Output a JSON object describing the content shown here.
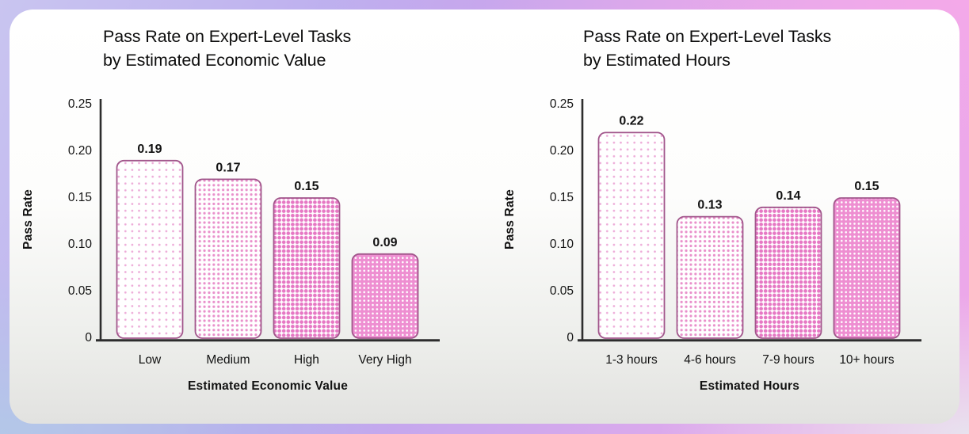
{
  "style": {
    "bar_border_color": "#a1568b",
    "dot_color_sparse": "#edaad8",
    "dot_color_medium": "#e990cb",
    "dot_color_dense": "#e678c4",
    "inverted_bar_bg": "#ee8ed1",
    "inverted_dot_color": "#ffffff",
    "axis_color": "#2d2d2d",
    "text_color": "#121212",
    "frame_purple": "#c9c5f0",
    "frame_pink": "#f3a8e8",
    "frame_blue": "#b3c7e8",
    "card_bg_top": "#ffffff",
    "card_bg_bottom": "#e2e2e0"
  },
  "chart_data": [
    {
      "type": "bar",
      "title": "Pass Rate on Expert-Level Tasks by Estimated Economic Value",
      "title_lines": [
        "Pass Rate on Expert-Level Tasks",
        "by Estimated Economic Value"
      ],
      "xlabel": "Estimated Economic Value",
      "ylabel": "Pass Rate",
      "categories": [
        "Low",
        "Medium",
        "High",
        "Very High"
      ],
      "values": [
        0.19,
        0.17,
        0.15,
        0.09
      ],
      "value_labels": [
        "0.19",
        "0.17",
        "0.15",
        "0.09"
      ],
      "ylim": [
        0,
        0.25
      ],
      "yticks": [
        0,
        0.05,
        0.1,
        0.15,
        0.2,
        0.25
      ],
      "ytick_labels": [
        "0",
        "0.05",
        "0.10",
        "0.15",
        "0.20",
        "0.25"
      ],
      "grid": false
    },
    {
      "type": "bar",
      "title": "Pass Rate on Expert-Level Tasks by Estimated Hours",
      "title_lines": [
        "Pass Rate on Expert-Level Tasks",
        "by Estimated Hours"
      ],
      "xlabel": "Estimated Hours",
      "ylabel": "Pass Rate",
      "categories": [
        "1-3 hours",
        "4-6 hours",
        "7-9 hours",
        "10+ hours"
      ],
      "values": [
        0.22,
        0.13,
        0.14,
        0.15
      ],
      "value_labels": [
        "0.22",
        "0.13",
        "0.14",
        "0.15"
      ],
      "ylim": [
        0,
        0.25
      ],
      "yticks": [
        0,
        0.05,
        0.1,
        0.15,
        0.2,
        0.25
      ],
      "ytick_labels": [
        "0",
        "0.05",
        "0.10",
        "0.15",
        "0.20",
        "0.25"
      ],
      "grid": false
    }
  ]
}
